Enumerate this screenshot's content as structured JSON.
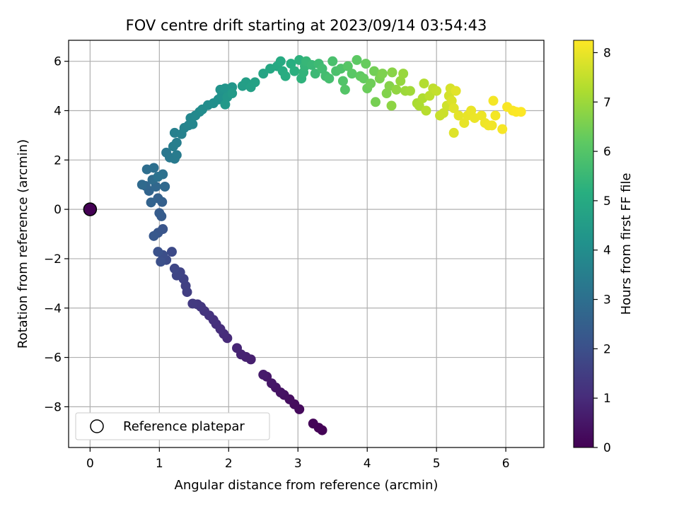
{
  "chart_data": {
    "type": "scatter",
    "title": "FOV centre drift starting at 2023/09/14 03:54:43",
    "xlabel": "Angular distance from reference (arcmin)",
    "ylabel": "Rotation from reference (arcmin)",
    "xlim": [
      -0.31,
      6.55
    ],
    "ylim": [
      -9.65,
      6.85
    ],
    "xticks": [
      0,
      1,
      2,
      3,
      4,
      5,
      6
    ],
    "yticks": [
      -8,
      -6,
      -4,
      -2,
      0,
      2,
      4,
      6
    ],
    "grid": true,
    "legend": {
      "placement": "lower-left",
      "entries": [
        "Reference platepar"
      ]
    },
    "reference_point": {
      "x": 0,
      "y": 0,
      "hours": 0
    },
    "colorbar": {
      "label": "Hours from first FF file",
      "range": [
        0,
        8.25
      ],
      "ticks": [
        0,
        1,
        2,
        3,
        4,
        5,
        6,
        7,
        8
      ],
      "colormap": "viridis"
    },
    "points": [
      [
        3.35,
        -8.95,
        0.05
      ],
      [
        3.3,
        -8.85,
        0.08
      ],
      [
        3.22,
        -8.68,
        0.1
      ],
      [
        3.02,
        -8.1,
        0.2
      ],
      [
        2.95,
        -7.9,
        0.25
      ],
      [
        2.88,
        -7.7,
        0.3
      ],
      [
        2.8,
        -7.52,
        0.35
      ],
      [
        2.75,
        -7.42,
        0.4
      ],
      [
        2.68,
        -7.22,
        0.45
      ],
      [
        2.62,
        -7.05,
        0.5
      ],
      [
        2.55,
        -6.78,
        0.55
      ],
      [
        2.5,
        -6.7,
        0.6
      ],
      [
        2.32,
        -6.08,
        0.7
      ],
      [
        2.25,
        -5.98,
        0.75
      ],
      [
        2.18,
        -5.88,
        0.8
      ],
      [
        2.12,
        -5.62,
        0.85
      ],
      [
        1.98,
        -5.22,
        0.95
      ],
      [
        1.93,
        -5.05,
        1.0
      ],
      [
        1.88,
        -4.85,
        1.05
      ],
      [
        1.82,
        -4.65,
        1.1
      ],
      [
        1.78,
        -4.48,
        1.15
      ],
      [
        1.72,
        -4.3,
        1.2
      ],
      [
        1.65,
        -4.12,
        1.25
      ],
      [
        1.6,
        -3.95,
        1.3
      ],
      [
        1.55,
        -3.85,
        1.35
      ],
      [
        1.48,
        -3.82,
        1.4
      ],
      [
        1.4,
        -3.35,
        1.5
      ],
      [
        1.38,
        -3.1,
        1.55
      ],
      [
        1.35,
        -2.82,
        1.6
      ],
      [
        1.3,
        -2.55,
        1.65
      ],
      [
        1.25,
        -2.68,
        1.7
      ],
      [
        1.22,
        -2.4,
        1.75
      ],
      [
        1.18,
        -1.72,
        1.85
      ],
      [
        1.1,
        -2.05,
        1.9
      ],
      [
        1.05,
        -1.85,
        1.95
      ],
      [
        1.02,
        -2.12,
        2.0
      ],
      [
        0.98,
        -1.72,
        2.05
      ],
      [
        1.05,
        -0.8,
        2.15
      ],
      [
        0.98,
        -0.95,
        2.2
      ],
      [
        0.92,
        -1.08,
        2.25
      ],
      [
        1.03,
        -0.28,
        2.35
      ],
      [
        1.0,
        -0.15,
        2.4
      ],
      [
        1.04,
        0.3,
        2.5
      ],
      [
        0.98,
        0.45,
        2.55
      ],
      [
        0.88,
        0.28,
        2.6
      ],
      [
        0.85,
        0.75,
        2.65
      ],
      [
        0.8,
        0.95,
        2.7
      ],
      [
        0.95,
        0.92,
        2.75
      ],
      [
        1.08,
        0.92,
        2.8
      ],
      [
        0.75,
        1.0,
        2.85
      ],
      [
        0.9,
        1.2,
        2.9
      ],
      [
        0.82,
        1.62,
        2.95
      ],
      [
        0.92,
        1.68,
        3.0
      ],
      [
        1.05,
        1.42,
        3.05
      ],
      [
        0.98,
        1.32,
        3.1
      ],
      [
        1.1,
        2.3,
        3.25
      ],
      [
        1.15,
        2.1,
        3.3
      ],
      [
        1.22,
        2.05,
        3.35
      ],
      [
        1.25,
        2.2,
        3.4
      ],
      [
        1.2,
        2.55,
        3.45
      ],
      [
        1.25,
        2.7,
        3.5
      ],
      [
        1.22,
        3.1,
        3.55
      ],
      [
        1.32,
        3.05,
        3.6
      ],
      [
        1.36,
        3.3,
        3.65
      ],
      [
        1.42,
        3.4,
        3.7
      ],
      [
        1.48,
        3.45,
        3.75
      ],
      [
        1.45,
        3.7,
        3.8
      ],
      [
        1.52,
        3.8,
        3.85
      ],
      [
        1.58,
        3.95,
        3.9
      ],
      [
        1.62,
        4.05,
        3.95
      ],
      [
        1.7,
        4.22,
        4.0
      ],
      [
        1.78,
        4.3,
        4.05
      ],
      [
        1.85,
        4.45,
        4.1
      ],
      [
        1.9,
        4.6,
        4.15
      ],
      [
        1.88,
        4.85,
        4.2
      ],
      [
        1.95,
        4.9,
        4.25
      ],
      [
        2.05,
        4.95,
        4.3
      ],
      [
        1.98,
        4.55,
        4.35
      ],
      [
        1.95,
        4.25,
        4.4
      ],
      [
        2.05,
        4.7,
        4.45
      ],
      [
        2.2,
        5.0,
        4.55
      ],
      [
        2.25,
        5.15,
        4.6
      ],
      [
        2.32,
        4.95,
        4.65
      ],
      [
        2.38,
        5.15,
        4.7
      ],
      [
        2.5,
        5.5,
        4.8
      ],
      [
        2.6,
        5.7,
        4.9
      ],
      [
        2.7,
        5.8,
        4.95
      ],
      [
        2.75,
        6.0,
        5.0
      ],
      [
        2.78,
        5.6,
        5.05
      ],
      [
        2.82,
        5.4,
        5.1
      ],
      [
        2.9,
        5.9,
        5.15
      ],
      [
        2.95,
        5.6,
        5.2
      ],
      [
        3.02,
        6.05,
        5.25
      ],
      [
        3.05,
        5.3,
        5.3
      ],
      [
        3.08,
        5.55,
        5.35
      ],
      [
        3.1,
        5.8,
        5.4
      ],
      [
        3.12,
        6.0,
        5.45
      ],
      [
        3.2,
        5.85,
        5.5
      ],
      [
        3.25,
        5.5,
        5.55
      ],
      [
        3.3,
        5.9,
        5.6
      ],
      [
        3.35,
        5.7,
        5.65
      ],
      [
        3.4,
        5.4,
        5.7
      ],
      [
        3.45,
        5.3,
        5.75
      ],
      [
        3.5,
        6.0,
        5.8
      ],
      [
        3.55,
        5.6,
        5.85
      ],
      [
        3.62,
        5.7,
        5.9
      ],
      [
        3.65,
        5.2,
        5.95
      ],
      [
        3.68,
        4.85,
        6.0
      ],
      [
        3.72,
        5.8,
        6.05
      ],
      [
        3.78,
        5.5,
        6.1
      ],
      [
        3.85,
        6.05,
        6.15
      ],
      [
        3.9,
        5.4,
        6.2
      ],
      [
        3.95,
        5.3,
        6.25
      ],
      [
        3.98,
        5.9,
        6.3
      ],
      [
        4.0,
        4.9,
        6.35
      ],
      [
        4.05,
        5.1,
        6.4
      ],
      [
        4.1,
        5.6,
        6.45
      ],
      [
        4.12,
        4.35,
        6.5
      ],
      [
        4.18,
        5.3,
        6.55
      ],
      [
        4.22,
        5.5,
        6.6
      ],
      [
        4.28,
        4.7,
        6.65
      ],
      [
        4.32,
        5.0,
        6.7
      ],
      [
        4.36,
        5.55,
        6.75
      ],
      [
        4.35,
        4.2,
        6.8
      ],
      [
        4.42,
        4.85,
        6.85
      ],
      [
        4.48,
        5.2,
        6.9
      ],
      [
        4.52,
        5.5,
        6.95
      ],
      [
        4.55,
        4.8,
        7.0
      ],
      [
        4.62,
        4.8,
        7.05
      ],
      [
        4.72,
        4.3,
        7.15
      ],
      [
        4.75,
        4.2,
        7.2
      ],
      [
        4.8,
        4.5,
        7.25
      ],
      [
        4.82,
        5.1,
        7.3
      ],
      [
        4.85,
        4.0,
        7.35
      ],
      [
        4.9,
        4.6,
        7.4
      ],
      [
        4.95,
        4.9,
        7.45
      ],
      [
        5.0,
        4.8,
        7.5
      ],
      [
        5.05,
        3.8,
        7.55
      ],
      [
        5.1,
        3.9,
        7.6
      ],
      [
        5.15,
        4.2,
        7.65
      ],
      [
        5.18,
        4.6,
        7.7
      ],
      [
        5.2,
        4.9,
        7.75
      ],
      [
        5.22,
        4.4,
        7.8
      ],
      [
        5.25,
        3.1,
        7.85
      ],
      [
        5.25,
        4.1,
        7.88
      ],
      [
        5.28,
        4.8,
        7.9
      ],
      [
        5.32,
        3.8,
        7.93
      ],
      [
        5.4,
        3.5,
        7.96
      ],
      [
        5.45,
        3.8,
        7.98
      ],
      [
        5.5,
        4.0,
        8.0
      ],
      [
        5.55,
        3.7,
        8.02
      ],
      [
        5.65,
        3.8,
        8.04
      ],
      [
        5.7,
        3.5,
        8.06
      ],
      [
        5.75,
        3.4,
        8.08
      ],
      [
        5.8,
        3.4,
        8.1
      ],
      [
        5.85,
        3.8,
        8.12
      ],
      [
        5.82,
        4.4,
        8.14
      ],
      [
        5.95,
        3.25,
        8.16
      ],
      [
        6.02,
        4.15,
        8.18
      ],
      [
        6.1,
        4.0,
        8.2
      ],
      [
        6.15,
        3.95,
        8.22
      ],
      [
        6.22,
        3.95,
        8.24
      ]
    ]
  }
}
